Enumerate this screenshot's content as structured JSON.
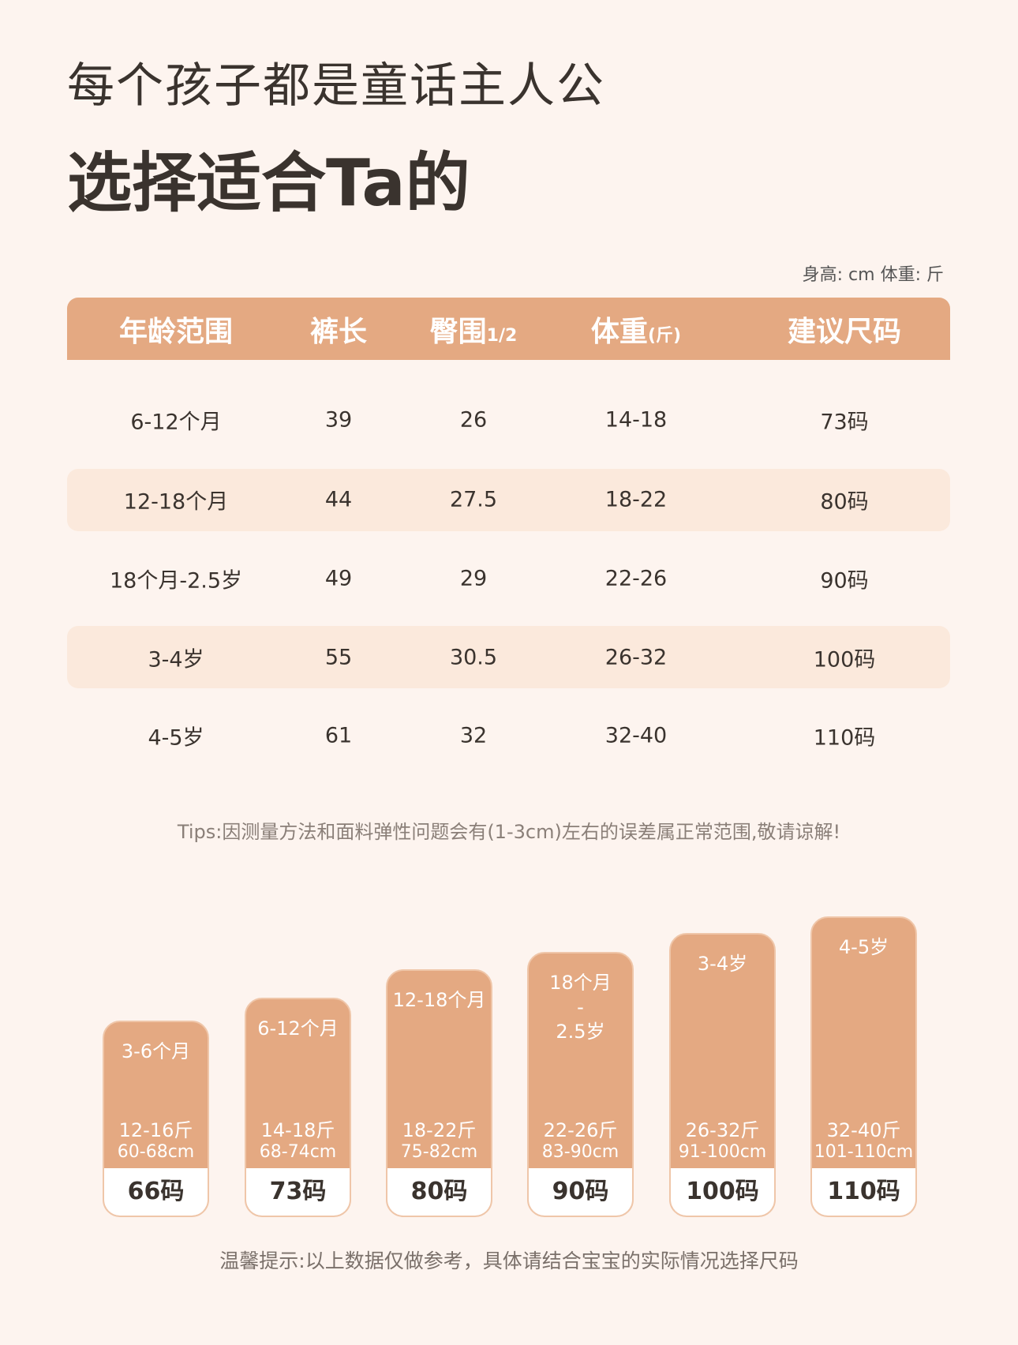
{
  "header": {
    "line1": "每个孩子都是童话主人公",
    "line2": "选择适合Ta的"
  },
  "unit_note": "身高: cm  体重: 斤",
  "table": {
    "headers": [
      {
        "main": "年龄范围"
      },
      {
        "main": "裤长"
      },
      {
        "main": "臀围",
        "sub": "1/2"
      },
      {
        "main": "体重",
        "sub": "(斤)"
      },
      {
        "main": "建议尺码"
      }
    ],
    "rows": [
      [
        "6-12个月",
        "39",
        "26",
        "14-18",
        "73码"
      ],
      [
        "12-18个月",
        "44",
        "27.5",
        "18-22",
        "80码"
      ],
      [
        "18个月-2.5岁",
        "49",
        "29",
        "22-26",
        "90码"
      ],
      [
        "3-4岁",
        "55",
        "30.5",
        "26-32",
        "100码"
      ],
      [
        "4-5岁",
        "61",
        "32",
        "32-40",
        "110码"
      ]
    ]
  },
  "tips": "Tips:因测量方法和面料弹性问题会有(1-3cm)左右的误差属正常范围,敬请谅解!",
  "cards": [
    {
      "age": [
        "3-6个月"
      ],
      "weight": "12-16斤",
      "height": "60-68cm",
      "size": "66码"
    },
    {
      "age": [
        "6-12个月"
      ],
      "weight": "14-18斤",
      "height": "68-74cm",
      "size": "73码"
    },
    {
      "age": [
        "12-18个月"
      ],
      "weight": "18-22斤",
      "height": "75-82cm",
      "size": "80码"
    },
    {
      "age": [
        "18个月",
        "-",
        "2.5岁"
      ],
      "weight": "22-26斤",
      "height": "83-90cm",
      "size": "90码"
    },
    {
      "age": [
        "3-4岁"
      ],
      "weight": "26-32斤",
      "height": "91-100cm",
      "size": "100码"
    },
    {
      "age": [
        "4-5岁"
      ],
      "weight": "32-40斤",
      "height": "101-110cm",
      "size": "110码"
    }
  ],
  "footer": "温馨提示:以上数据仅做参考，具体请结合宝宝的实际情况选择尺码"
}
